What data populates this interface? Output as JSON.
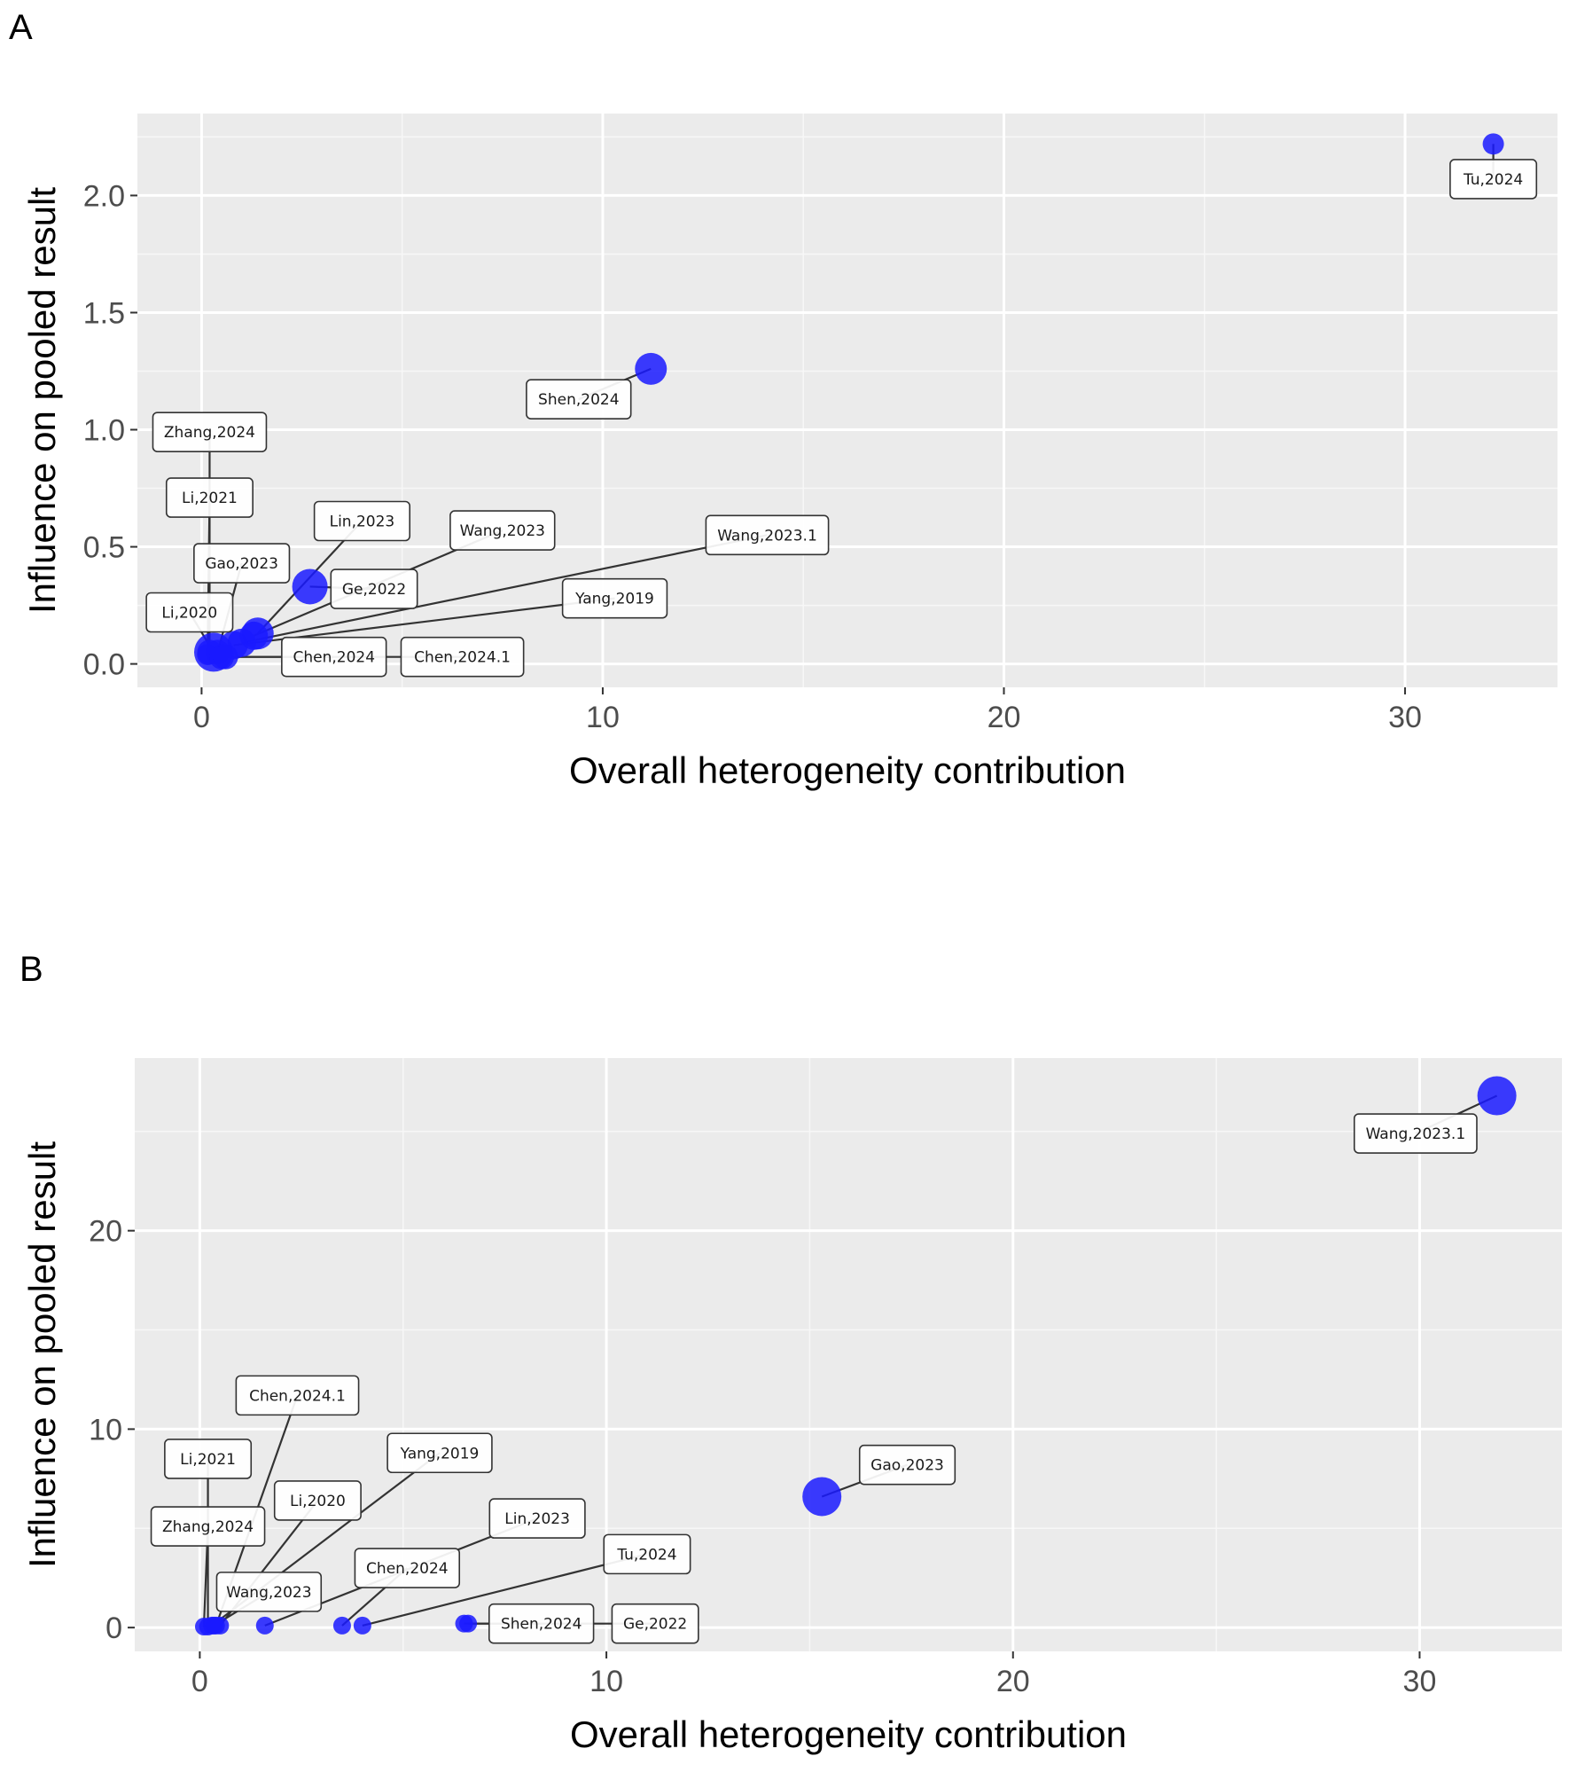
{
  "chart_data": [
    {
      "panel": "A",
      "type": "scatter",
      "xlabel": "Overall heterogeneity contribution",
      "ylabel": "Influence on pooled result",
      "xlim": [
        -1.6,
        33.8
      ],
      "ylim": [
        -0.1,
        2.35
      ],
      "xticks": [
        0,
        10,
        20,
        30
      ],
      "yticks": [
        0.0,
        0.5,
        1.0,
        1.5,
        2.0
      ],
      "ytick_labels": [
        "0.0",
        "0.5",
        "1.0",
        "1.5",
        "2.0"
      ],
      "point_color": "#1a1aff",
      "points": [
        {
          "label": "Tu,2024",
          "x": 32.2,
          "y": 2.22,
          "size": 12,
          "lx": 32.2,
          "ly": 2.07
        },
        {
          "label": "Shen,2024",
          "x": 11.2,
          "y": 1.26,
          "size": 18,
          "lx": 9.4,
          "ly": 1.13
        },
        {
          "label": "Zhang,2024",
          "x": 0.2,
          "y": 0.05,
          "size": 14,
          "lx": 0.2,
          "ly": 0.99
        },
        {
          "label": "Li,2021",
          "x": 0.15,
          "y": 0.04,
          "size": 12,
          "lx": 0.2,
          "ly": 0.71
        },
        {
          "label": "Lin,2023",
          "x": 1.4,
          "y": 0.13,
          "size": 18,
          "lx": 4.0,
          "ly": 0.61
        },
        {
          "label": "Wang,2023",
          "x": 1.3,
          "y": 0.12,
          "size": 16,
          "lx": 7.5,
          "ly": 0.57
        },
        {
          "label": "Wang,2023.1",
          "x": 1.0,
          "y": 0.09,
          "size": 16,
          "lx": 14.1,
          "ly": 0.55
        },
        {
          "label": "Gao,2023",
          "x": 0.4,
          "y": 0.05,
          "size": 14,
          "lx": 1.0,
          "ly": 0.43
        },
        {
          "label": "Ge,2022",
          "x": 2.7,
          "y": 0.33,
          "size": 20,
          "lx": 4.3,
          "ly": 0.32
        },
        {
          "label": "Yang,2019",
          "x": 0.8,
          "y": 0.08,
          "size": 16,
          "lx": 10.3,
          "ly": 0.28
        },
        {
          "label": "Li,2020",
          "x": 0.3,
          "y": 0.05,
          "size": 22,
          "lx": -0.3,
          "ly": 0.22
        },
        {
          "label": "Chen,2024",
          "x": 0.5,
          "y": 0.03,
          "size": 14,
          "lx": 3.3,
          "ly": 0.03
        },
        {
          "label": "Chen,2024.1",
          "x": 0.6,
          "y": 0.03,
          "size": 14,
          "lx": 6.5,
          "ly": 0.03
        }
      ]
    },
    {
      "panel": "B",
      "type": "scatter",
      "xlabel": "Overall heterogeneity contribution",
      "ylabel": "Influence on pooled result",
      "xlim": [
        -1.6,
        33.5
      ],
      "ylim": [
        -1.2,
        28.7
      ],
      "xticks": [
        0,
        10,
        20,
        30
      ],
      "yticks": [
        0,
        10,
        20
      ],
      "ytick_labels": [
        "0",
        "10",
        "20"
      ],
      "point_color": "#1a1aff",
      "points": [
        {
          "label": "Wang,2023.1",
          "x": 31.9,
          "y": 26.8,
          "size": 22,
          "lx": 29.9,
          "ly": 24.9
        },
        {
          "label": "Gao,2023",
          "x": 15.3,
          "y": 6.6,
          "size": 22,
          "lx": 17.4,
          "ly": 8.2
        },
        {
          "label": "Chen,2024.1",
          "x": 0.4,
          "y": 0.1,
          "size": 10,
          "lx": 2.4,
          "ly": 11.7
        },
        {
          "label": "Li,2021",
          "x": 0.2,
          "y": 0.05,
          "size": 10,
          "lx": 0.2,
          "ly": 8.5
        },
        {
          "label": "Yang,2019",
          "x": 0.3,
          "y": 0.1,
          "size": 10,
          "lx": 5.9,
          "ly": 8.8
        },
        {
          "label": "Li,2020",
          "x": 0.5,
          "y": 0.1,
          "size": 10,
          "lx": 2.9,
          "ly": 6.4
        },
        {
          "label": "Zhang,2024",
          "x": 0.1,
          "y": 0.05,
          "size": 10,
          "lx": 0.2,
          "ly": 5.1
        },
        {
          "label": "Lin,2023",
          "x": 1.6,
          "y": 0.1,
          "size": 10,
          "lx": 8.3,
          "ly": 5.5
        },
        {
          "label": "Chen,2024",
          "x": 3.5,
          "y": 0.1,
          "size": 10,
          "lx": 5.1,
          "ly": 3.0
        },
        {
          "label": "Tu,2024",
          "x": 4.0,
          "y": 0.1,
          "size": 10,
          "lx": 11.0,
          "ly": 3.7
        },
        {
          "label": "Wang,2023",
          "x": 0.35,
          "y": 0.1,
          "size": 10,
          "lx": 1.7,
          "ly": 1.8
        },
        {
          "label": "Shen,2024",
          "x": 6.5,
          "y": 0.2,
          "size": 10,
          "lx": 8.4,
          "ly": 0.2
        },
        {
          "label": "Ge,2022",
          "x": 6.6,
          "y": 0.2,
          "size": 10,
          "lx": 11.2,
          "ly": 0.2
        }
      ]
    }
  ]
}
